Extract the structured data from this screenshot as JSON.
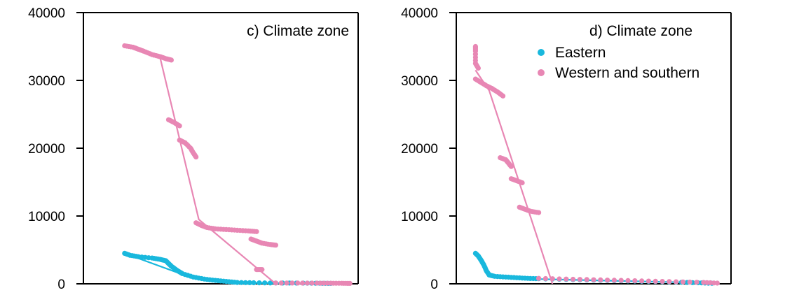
{
  "chart_data": [
    {
      "type": "scatter",
      "title": "c) Climate zone",
      "xlabel": "",
      "ylabel": "",
      "xlim": [
        0,
        100
      ],
      "ylim": [
        0,
        40000
      ],
      "yticks": [
        0,
        10000,
        20000,
        30000,
        40000
      ],
      "ytick_labels": [
        "0",
        "10000",
        "20000",
        "30000",
        "40000"
      ],
      "legend": null,
      "series": [
        {
          "name": "Eastern",
          "color": "#19b8dd",
          "segments": [
            [
              [
                15,
                4500
              ],
              [
                17,
                4200
              ],
              [
                20,
                4000
              ],
              [
                25,
                3800
              ],
              [
                28,
                3600
              ],
              [
                30,
                3400
              ],
              [
                31,
                3000
              ],
              [
                32,
                2600
              ],
              [
                34,
                2000
              ],
              [
                36,
                1500
              ],
              [
                40,
                1000
              ],
              [
                44,
                700
              ],
              [
                48,
                500
              ],
              [
                52,
                350
              ],
              [
                56,
                200
              ],
              [
                62,
                150
              ],
              [
                70,
                120
              ],
              [
                80,
                100
              ],
              [
                86,
                80
              ],
              [
                90,
                60
              ]
            ]
          ],
          "trend": [
            [
              15,
              4500
            ],
            [
              40,
              800
            ],
            [
              52,
              200
            ],
            [
              70,
              100
            ],
            [
              95,
              50
            ]
          ]
        },
        {
          "name": "Western and southern",
          "color": "#e887b4",
          "segments": [
            [
              [
                15,
                35100
              ],
              [
                18,
                34900
              ],
              [
                20,
                34600
              ],
              [
                22,
                34300
              ],
              [
                25,
                33800
              ],
              [
                28,
                33500
              ],
              [
                30,
                33200
              ],
              [
                32,
                33000
              ]
            ],
            [
              [
                31,
                24200
              ],
              [
                33,
                23800
              ],
              [
                35,
                23300
              ]
            ],
            [
              [
                35,
                21200
              ],
              [
                37,
                20800
              ],
              [
                39,
                20000
              ],
              [
                40,
                19300
              ],
              [
                41,
                18700
              ]
            ],
            [
              [
                41,
                9000
              ],
              [
                43,
                8600
              ],
              [
                45,
                8300
              ],
              [
                48,
                8100
              ],
              [
                52,
                8000
              ],
              [
                56,
                7900
              ],
              [
                60,
                7800
              ],
              [
                63,
                7700
              ]
            ],
            [
              [
                61,
                6600
              ],
              [
                63,
                6300
              ],
              [
                65,
                6000
              ],
              [
                68,
                5800
              ],
              [
                70,
                5700
              ]
            ],
            [
              [
                63,
                2100
              ],
              [
                65,
                2100
              ]
            ],
            [
              [
                70,
                120
              ],
              [
                78,
                110
              ],
              [
                85,
                100
              ],
              [
                90,
                90
              ],
              [
                94,
                80
              ],
              [
                97,
                60
              ]
            ]
          ],
          "trend": [
            [
              15,
              35100
            ],
            [
              28,
              33200
            ],
            [
              42,
              9500
            ],
            [
              70,
              0
            ]
          ]
        }
      ]
    },
    {
      "type": "scatter",
      "title": "d) Climate zone",
      "xlabel": "",
      "ylabel": "",
      "xlim": [
        0,
        100
      ],
      "ylim": [
        0,
        40000
      ],
      "yticks": [
        0,
        10000,
        20000,
        30000,
        40000
      ],
      "ytick_labels": [
        "0",
        "10000",
        "20000",
        "30000",
        "40000"
      ],
      "legend": [
        "Eastern",
        "Western and southern"
      ],
      "series": [
        {
          "name": "Eastern",
          "color": "#19b8dd",
          "segments": [
            [
              [
                7,
                4500
              ],
              [
                8,
                4100
              ],
              [
                9,
                3500
              ],
              [
                10,
                2800
              ],
              [
                11,
                1900
              ],
              [
                12,
                1300
              ],
              [
                14,
                1100
              ],
              [
                18,
                1000
              ],
              [
                22,
                900
              ],
              [
                26,
                800
              ],
              [
                30,
                750
              ],
              [
                40,
                650
              ],
              [
                50,
                550
              ],
              [
                60,
                450
              ],
              [
                70,
                350
              ],
              [
                80,
                250
              ],
              [
                88,
                150
              ],
              [
                93,
                80
              ]
            ]
          ],
          "trend": [
            [
              7,
              4500
            ],
            [
              12,
              1200
            ],
            [
              30,
              700
            ],
            [
              95,
              100
            ]
          ]
        },
        {
          "name": "Western and southern",
          "color": "#e887b4",
          "segments": [
            [
              [
                7,
                35000
              ],
              [
                7,
                34300
              ],
              [
                7,
                32500
              ],
              [
                8,
                31800
              ]
            ],
            [
              [
                7,
                30200
              ],
              [
                9,
                29700
              ],
              [
                11,
                29200
              ],
              [
                13,
                28800
              ],
              [
                15,
                28300
              ],
              [
                17,
                27700
              ]
            ],
            [
              [
                16,
                18600
              ],
              [
                18,
                18300
              ],
              [
                19,
                17800
              ],
              [
                20,
                17300
              ]
            ],
            [
              [
                20,
                15500
              ],
              [
                22,
                15200
              ],
              [
                24,
                14900
              ]
            ],
            [
              [
                23,
                11300
              ],
              [
                25,
                11000
              ],
              [
                27,
                10700
              ],
              [
                30,
                10500
              ]
            ],
            [
              [
                30,
                800
              ],
              [
                40,
                700
              ],
              [
                50,
                600
              ],
              [
                60,
                500
              ],
              [
                70,
                400
              ],
              [
                80,
                300
              ],
              [
                90,
                200
              ],
              [
                95,
                100
              ]
            ]
          ],
          "trend": [
            [
              7,
              31500
            ],
            [
              12,
              28500
            ],
            [
              35,
              0
            ]
          ]
        }
      ]
    }
  ]
}
